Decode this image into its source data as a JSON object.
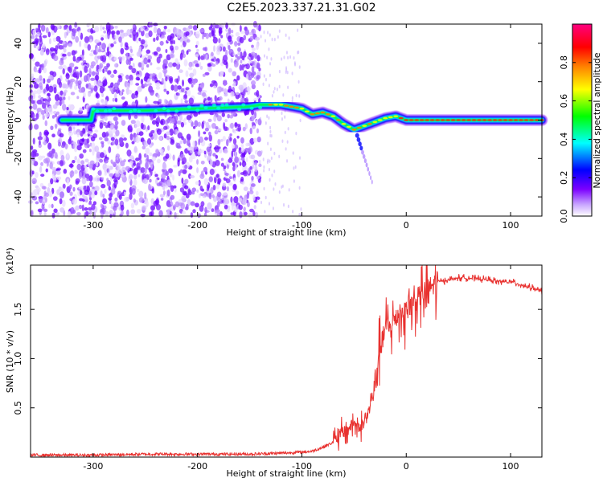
{
  "title": "C2E5.2023.337.21.31.G02",
  "chart_data": [
    {
      "type": "heatmap",
      "title": "C2E5.2023.337.21.31.G02",
      "xlabel": "Height of straight line (km)",
      "ylabel": "Frequency (Hz)",
      "xlim": [
        -360,
        130
      ],
      "ylim": [
        -50,
        50
      ],
      "xticks": [
        -300,
        -200,
        -100,
        0,
        100
      ],
      "xtick_labels": [
        "-300",
        "-200",
        "-100",
        "0",
        "100"
      ],
      "yticks": [
        -40,
        -20,
        0,
        20,
        40
      ],
      "ytick_labels": [
        "-40",
        "-20",
        "0",
        "20",
        "40"
      ],
      "colorbar": {
        "label": "Normalized spectral amplitude",
        "range": [
          0,
          1
        ],
        "ticks": [
          0.0,
          0.2,
          0.4,
          0.6,
          0.8
        ],
        "tick_labels": [
          "0.0",
          "0.2",
          "0.4",
          "0.6",
          "0.8"
        ],
        "colors": [
          "#ffffff",
          "#7b00ff",
          "#0000ff",
          "#00ffff",
          "#00ff00",
          "#ffff00",
          "#ff8000",
          "#ff0000",
          "#ff0080"
        ]
      },
      "ridge": {
        "x": [
          -300,
          -250,
          -200,
          -150,
          -140,
          -120,
          -100,
          -90,
          -80,
          -70,
          -60,
          -50,
          -40,
          -30,
          -20,
          -10,
          0,
          50,
          100,
          130
        ],
        "y": [
          5,
          5,
          6,
          7,
          8,
          8,
          6,
          3,
          4,
          2,
          -2,
          -5,
          -3,
          -1,
          1,
          2,
          0,
          0,
          0,
          0
        ]
      },
      "noise_region_xlim": [
        -360,
        -140
      ]
    },
    {
      "type": "line",
      "xlabel": "Height of straight line (km)",
      "ylabel": "SNR (10 * v/v)",
      "y_multiplier": "(x10⁴)",
      "xlim": [
        -360,
        130
      ],
      "ylim": [
        0,
        1.95
      ],
      "xticks": [
        -300,
        -200,
        -100,
        0,
        100
      ],
      "xtick_labels": [
        "-300",
        "-200",
        "-100",
        "0",
        "100"
      ],
      "yticks": [
        0.5,
        1.0,
        1.5
      ],
      "ytick_labels": [
        "0.5",
        "1.0",
        "1.5"
      ],
      "series": [
        {
          "color": "#e8312f",
          "x": [
            -360,
            -300,
            -250,
            -200,
            -150,
            -120,
            -100,
            -90,
            -80,
            -70,
            -60,
            -55,
            -50,
            -45,
            -40,
            -35,
            -30,
            -27,
            -25,
            -22,
            -20,
            -18,
            -15,
            -12,
            -10,
            -8,
            -5,
            -2,
            0,
            5,
            10,
            20,
            30,
            40,
            50,
            60,
            70,
            80,
            90,
            100,
            110,
            120,
            130
          ],
          "y": [
            0.02,
            0.02,
            0.03,
            0.03,
            0.03,
            0.04,
            0.05,
            0.06,
            0.1,
            0.15,
            0.25,
            0.3,
            0.35,
            0.3,
            0.35,
            0.5,
            0.7,
            1.0,
            1.1,
            1.2,
            1.3,
            1.35,
            1.3,
            1.4,
            1.35,
            1.45,
            1.5,
            1.45,
            1.5,
            1.55,
            1.6,
            1.7,
            1.78,
            1.8,
            1.82,
            1.82,
            1.81,
            1.8,
            1.78,
            1.78,
            1.75,
            1.72,
            1.68
          ]
        }
      ]
    }
  ]
}
